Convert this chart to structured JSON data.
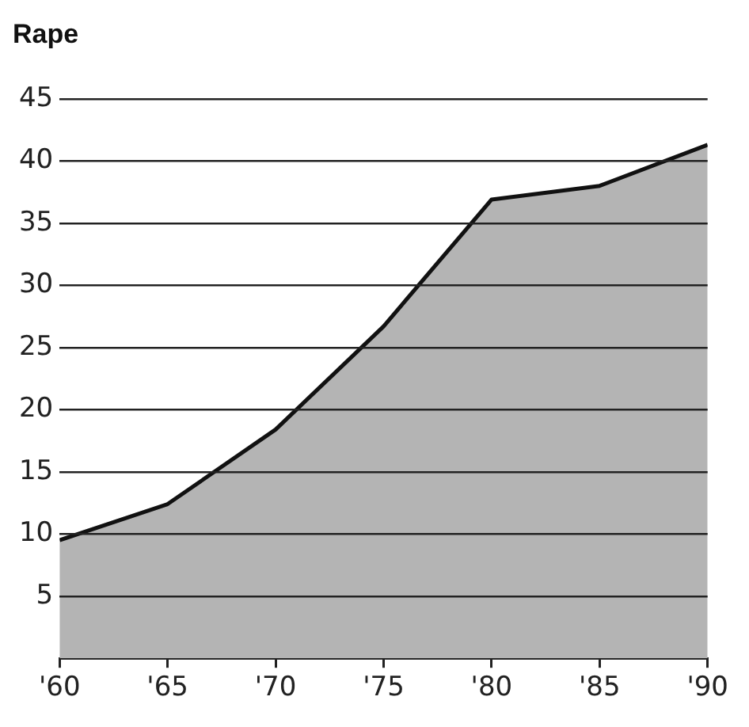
{
  "chart_data": {
    "type": "area",
    "title": "Rape",
    "x": [
      1960,
      1965,
      1970,
      1975,
      1980,
      1985,
      1990
    ],
    "series": [
      {
        "color": "#b4b4b4",
        "values": [
          9.5,
          12.4,
          18.4,
          26.7,
          36.9,
          38.0,
          41.3
        ]
      }
    ],
    "xlim": [
      1960,
      1990
    ],
    "xticks": [
      {
        "value": 1960,
        "label": "'60"
      },
      {
        "value": 1965,
        "label": "'65"
      },
      {
        "value": 1970,
        "label": "'70"
      },
      {
        "value": 1975,
        "label": "'75"
      },
      {
        "value": 1980,
        "label": "'80"
      },
      {
        "value": 1985,
        "label": "'85"
      },
      {
        "value": 1990,
        "label": "'90"
      }
    ],
    "ylim": [
      0,
      45
    ],
    "yticks": [
      5,
      10,
      15,
      20,
      25,
      30,
      35,
      40,
      45
    ],
    "grid": "y",
    "legend": false
  }
}
